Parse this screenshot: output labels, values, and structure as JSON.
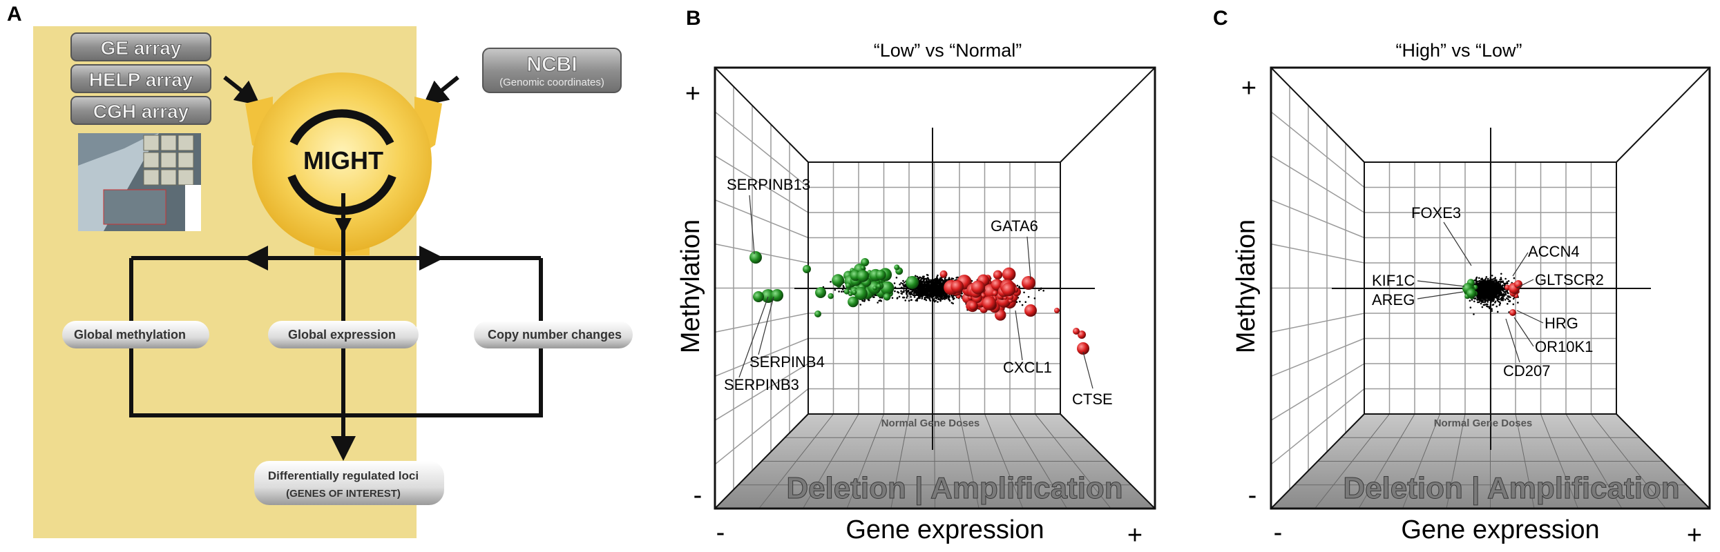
{
  "panel_a": {
    "letter": "A",
    "array_buttons": [
      "GE array",
      "HELP array",
      "CGH array"
    ],
    "ncbi": {
      "title": "NCBI",
      "subtitle": "(Genomic coordinates)"
    },
    "center_label": "MIGHT",
    "pills": [
      "Global methylation",
      "Global expression",
      "Copy number changes"
    ],
    "result": {
      "line1": "Differentially regulated loci",
      "line2": "(GENES OF INTEREST)"
    },
    "colors": {
      "background": "#efdc8f",
      "hub": "#f2c23c",
      "button": "#8c8c8c"
    }
  },
  "panel_b": {
    "letter": "B",
    "title": "“Low” vs “Normal”",
    "y_axis": "Methylation",
    "x_axis": "Gene expression",
    "plus_y": "+",
    "minus_y": "-",
    "minus_x": "-",
    "plus_x": "+",
    "floor_small": "Normal Gene Doses",
    "floor_big": "Deletion | Amplification",
    "genes": [
      "SERPINB13",
      "GATA6",
      "SERPINB4",
      "SERPINB3",
      "CXCL1",
      "CTSE"
    ]
  },
  "panel_c": {
    "letter": "C",
    "title": "“High” vs “Low”",
    "y_axis": "Methylation",
    "x_axis": "Gene expression",
    "plus_y": "+",
    "minus_y": "-",
    "minus_x": "-",
    "plus_x": "+",
    "floor_small": "Normal Gene Doses",
    "floor_big": "Deletion | Amplification",
    "genes": [
      "FOXE3",
      "ACCN4",
      "KIF1C",
      "GLTSCR2",
      "AREG",
      "HRG",
      "OR10K1",
      "CD207"
    ]
  },
  "colors": {
    "deletion": "#1f8a1f",
    "amplification": "#d81e1e",
    "neutral": "#000000"
  }
}
